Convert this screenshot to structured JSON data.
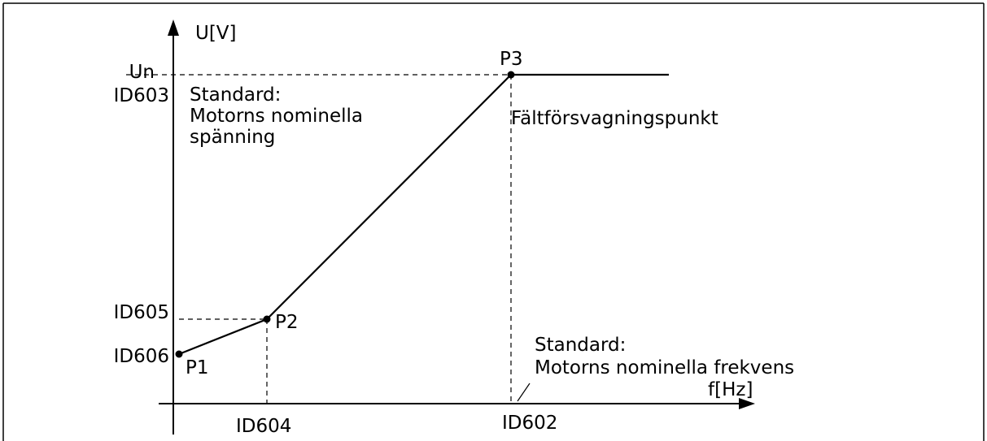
{
  "axes": {
    "y_label": "U[V]",
    "x_label": "f[Hz]"
  },
  "y_marks": {
    "un": "Un",
    "id603": "ID603",
    "id605": "ID605",
    "id606": "ID606"
  },
  "x_marks": {
    "id604": "ID604",
    "id602": "ID602"
  },
  "points": {
    "p1": "P1",
    "p2": "P2",
    "p3": "P3"
  },
  "annotations": {
    "voltage_default": [
      "Standard:",
      "Motorns nominella",
      "spänning"
    ],
    "field_weakening": "Fältförsvagningspunkt",
    "frequency_default": [
      "Standard:",
      "Motorns nominella frekvens"
    ]
  }
}
